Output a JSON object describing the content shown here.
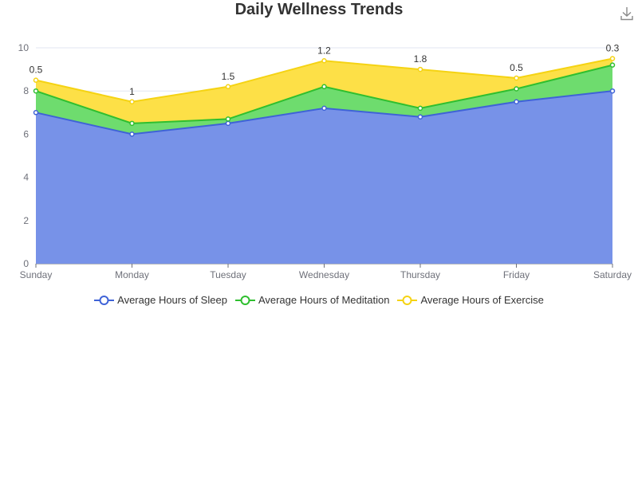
{
  "toolbar": {
    "download_icon": "download-icon"
  },
  "chart_data": {
    "type": "area",
    "title": "Daily Wellness Trends",
    "stacked": true,
    "categories": [
      "Sunday",
      "Monday",
      "Tuesday",
      "Wednesday",
      "Thursday",
      "Friday",
      "Saturday"
    ],
    "ylim": [
      0,
      10
    ],
    "yticks": [
      0,
      2,
      4,
      6,
      8,
      10
    ],
    "grid": true,
    "legend_position": "bottom",
    "series": [
      {
        "name": "Average Hours of Sleep",
        "values": [
          7,
          6,
          6.5,
          7.2,
          6.8,
          7.5,
          8
        ],
        "line_color": "#3f63d7",
        "fill_color": "#7792e8",
        "show_labels": false
      },
      {
        "name": "Average Hours of Meditation",
        "values": [
          1,
          0.5,
          0.2,
          1,
          0.4,
          0.6,
          1.2
        ],
        "line_color": "#2fbf2f",
        "fill_color": "#6edc6e",
        "show_labels": false
      },
      {
        "name": "Average Hours of Exercise",
        "values": [
          0.5,
          1,
          1.5,
          1.2,
          1.8,
          0.5,
          0.3
        ],
        "line_color": "#f5d313",
        "fill_color": "#fde047",
        "show_labels": true
      }
    ]
  }
}
